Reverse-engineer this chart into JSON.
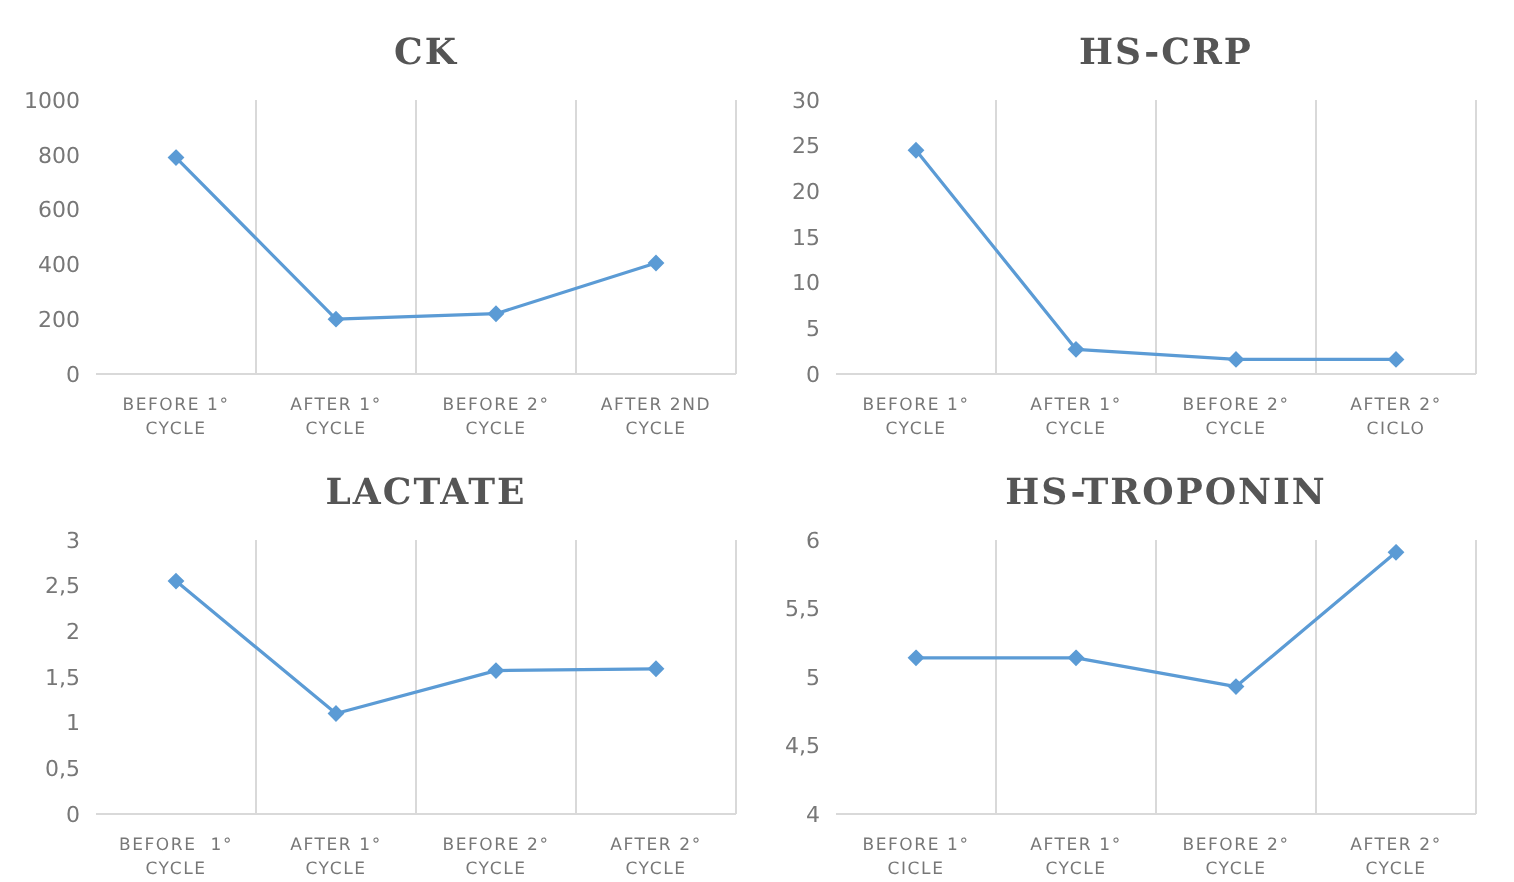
{
  "chart_data": [
    {
      "type": "line",
      "title": "CK",
      "categories": [
        "BEFORE 1°\nCYCLE",
        "AFTER 1°\nCYCLE",
        "BEFORE 2°\nCYCLE",
        "AFTER 2ND\nCYCLE"
      ],
      "series": [
        {
          "color": "#5b9bd5",
          "values": [
            790,
            200,
            220,
            405
          ]
        }
      ],
      "ylim": [
        0,
        1000
      ],
      "yticks": [
        0,
        200,
        400,
        600,
        800,
        1000
      ],
      "grid": "x",
      "marker": "diamond",
      "legend": false
    },
    {
      "type": "line",
      "title": "HS-CRP",
      "categories": [
        "BEFORE 1°\nCYCLE",
        "AFTER 1°\nCYCLE",
        "BEFORE 2°\nCYCLE",
        "AFTER 2°\nCICLO"
      ],
      "series": [
        {
          "color": "#5b9bd5",
          "values": [
            24.5,
            2.7,
            1.6,
            1.6
          ]
        }
      ],
      "ylim": [
        0,
        30
      ],
      "yticks": [
        0,
        5,
        10,
        15,
        20,
        25,
        30
      ],
      "grid": "x",
      "marker": "diamond",
      "legend": false
    },
    {
      "type": "line",
      "title": "LACTATE",
      "categories": [
        "BEFORE  1°\nCYCLE",
        "AFTER 1°\nCYCLE",
        "BEFORE 2°\nCYCLE",
        "AFTER 2°\nCYCLE"
      ],
      "series": [
        {
          "color": "#5b9bd5",
          "values": [
            2.55,
            1.1,
            1.57,
            1.59
          ]
        }
      ],
      "ylim": [
        0,
        3
      ],
      "yticks": [
        0,
        {
          "value": 0.5,
          "label": "0,5"
        },
        1,
        {
          "value": 1.5,
          "label": "1,5"
        },
        2,
        {
          "value": 2.5,
          "label": "2,5"
        },
        3
      ],
      "grid": "x",
      "marker": "diamond",
      "legend": false
    },
    {
      "type": "line",
      "title": "HS-TROPONIN",
      "categories": [
        "BEFORE 1°\nCICLE",
        "AFTER 1°\nCYCLE",
        "BEFORE 2°\nCYCLE",
        "AFTER 2°\nCYCLE"
      ],
      "series": [
        {
          "color": "#5b9bd5",
          "values": [
            5.14,
            5.14,
            4.93,
            5.91
          ]
        }
      ],
      "ylim": [
        4,
        6
      ],
      "yticks": [
        4,
        {
          "value": 4.5,
          "label": "4,5"
        },
        5,
        {
          "value": 5.5,
          "label": "5,5"
        },
        6
      ],
      "grid": "x",
      "marker": "diamond",
      "legend": false
    }
  ]
}
